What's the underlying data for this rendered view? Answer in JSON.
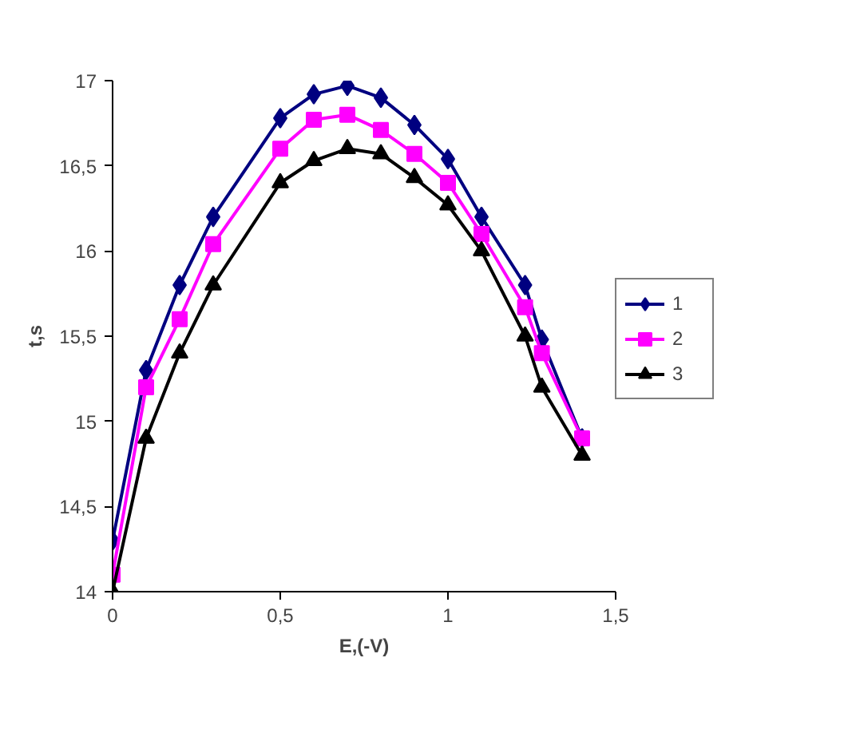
{
  "chart_data": {
    "type": "line",
    "xlabel": "E,(-V)",
    "ylabel": "t,s",
    "x": [
      0,
      0.1,
      0.2,
      0.3,
      0.5,
      0.6,
      0.7,
      0.8,
      0.9,
      1.0,
      1.1,
      1.23,
      1.28,
      1.4
    ],
    "series": [
      {
        "name": "1",
        "color": "#000080",
        "marker": "diamond",
        "values": [
          14.3,
          15.3,
          15.8,
          16.2,
          16.78,
          16.92,
          16.97,
          16.9,
          16.74,
          16.54,
          16.2,
          15.8,
          15.48,
          14.9
        ]
      },
      {
        "name": "2",
        "color": "#ff00ff",
        "marker": "square",
        "values": [
          14.1,
          15.2,
          15.6,
          16.04,
          16.6,
          16.77,
          16.8,
          16.71,
          16.57,
          16.4,
          16.1,
          15.67,
          15.4,
          14.9
        ]
      },
      {
        "name": "3",
        "color": "#000000",
        "marker": "triangle",
        "values": [
          14.0,
          14.9,
          15.4,
          15.8,
          16.4,
          16.53,
          16.6,
          16.57,
          16.43,
          16.27,
          16.0,
          15.5,
          15.2,
          14.8
        ]
      }
    ],
    "xlim": [
      0,
      1.5
    ],
    "xticks": [
      {
        "value": 0,
        "label": "0"
      },
      {
        "value": 0.5,
        "label": "0,5"
      },
      {
        "value": 1,
        "label": "1"
      },
      {
        "value": 1.5,
        "label": "1,5"
      }
    ],
    "ylim": [
      14,
      17
    ],
    "yticks": [
      {
        "value": 14,
        "label": "14"
      },
      {
        "value": 14.5,
        "label": "14,5"
      },
      {
        "value": 15,
        "label": "15"
      },
      {
        "value": 15.5,
        "label": "15,5"
      },
      {
        "value": 16,
        "label": "16"
      },
      {
        "value": 16.5,
        "label": "16,5"
      },
      {
        "value": 17,
        "label": "17"
      }
    ],
    "grid": false,
    "legend": "right",
    "line_style": "solid"
  }
}
